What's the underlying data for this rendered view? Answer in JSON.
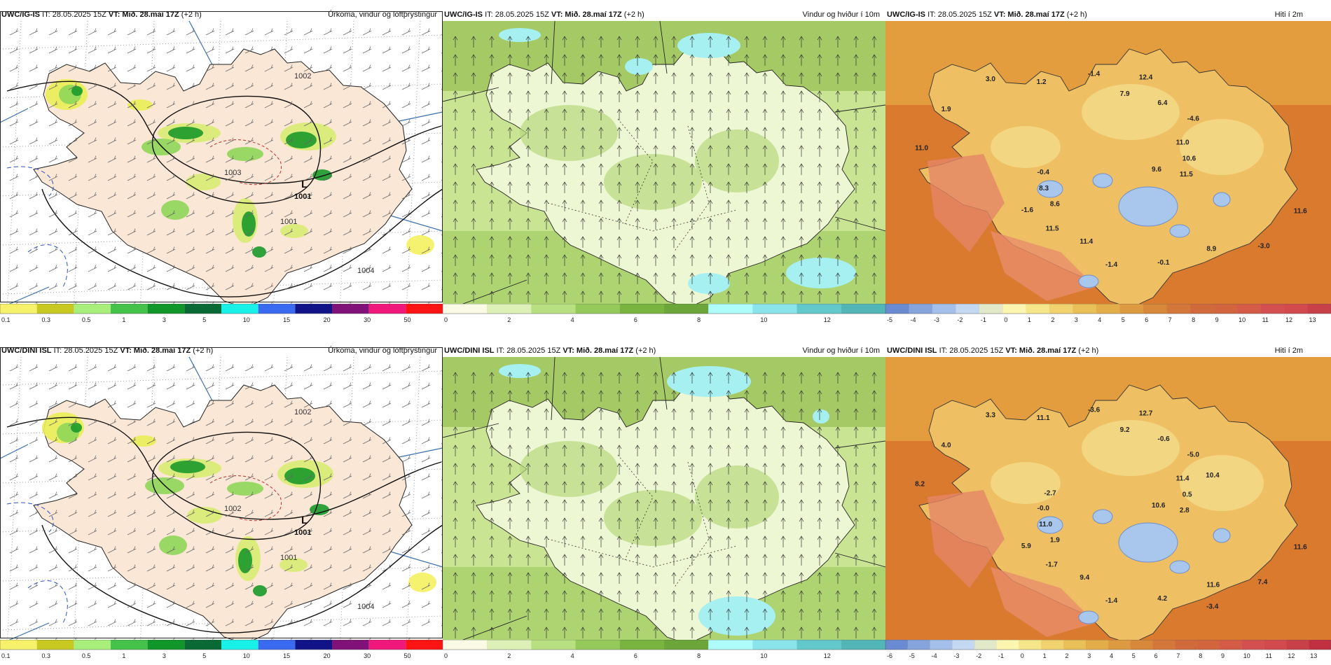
{
  "colors": {
    "land_precip": "#fbe7d6",
    "sea_precip": "#ffffff",
    "wind_base": "#d9eeb0",
    "temp_sea": "#d97a2f"
  },
  "rows": [
    {
      "panels": [
        {
          "model": "UWC/IG-IS",
          "it": "IT: 28.05.2025 15Z",
          "vt": "VT: Mið. 28.maí 17Z",
          "lead": "(+2 h)",
          "product": "Úrkoma, vindur og loftþrýstingur",
          "pressure_labels": [
            "1002",
            "1003",
            "1001",
            "1004"
          ],
          "low_symbol": "L",
          "colorbar": [
            "0.1",
            "0.3",
            "0.5",
            "1",
            "3",
            "5",
            "10",
            "15",
            "20",
            "30",
            "50"
          ]
        },
        {
          "model": "UWC/IG-IS",
          "it": "IT: 28.05.2025 15Z",
          "vt": "VT: Mið. 28.maí 17Z",
          "lead": "(+2 h)",
          "product": "Vindur og hviður í 10m",
          "colorbar": [
            "0",
            "2",
            "4",
            "6",
            "8",
            "10",
            "12"
          ]
        },
        {
          "model": "UWC/IG-IS",
          "it": "IT: 28.05.2025 15Z",
          "vt": "VT: Mið. 28.maí 17Z",
          "lead": "(+2 h)",
          "product": "Hiti í 2m",
          "temps": [
            "9.6",
            "8.6",
            "7.9",
            "8.9",
            "11.0",
            "11.0",
            "11.4",
            "1.2",
            "11.6",
            "8.3",
            "6.4",
            "-0.1",
            "1.9",
            "10.6",
            "11.5",
            "-1.4",
            "-3.0",
            "-0.4",
            "-4.6",
            "-1.4",
            "3.0",
            "11.5",
            "-1.6",
            "12.4"
          ],
          "colorbar": [
            "-5",
            "-4",
            "-3",
            "-2",
            "-1",
            "0",
            "1",
            "2",
            "3",
            "4",
            "5",
            "6",
            "7",
            "8",
            "9",
            "10",
            "11",
            "12",
            "13"
          ]
        }
      ]
    },
    {
      "panels": [
        {
          "model": "UWC/DINI ISL",
          "it": "IT: 28.05.2025 15Z",
          "vt": "VT: Mið. 28.maí 17Z",
          "lead": "(+2 h)",
          "product": "Úrkoma, vindur og loftþrýstingur",
          "pressure_labels": [
            "1002",
            "1002",
            "1001",
            "1004"
          ],
          "low_symbol": "L",
          "colorbar": [
            "0.1",
            "0.3",
            "0.5",
            "1",
            "3",
            "5",
            "10",
            "15",
            "20",
            "30",
            "50"
          ]
        },
        {
          "model": "UWC/DINI ISL",
          "it": "IT: 28.05.2025 15Z",
          "vt": "VT: Mið. 28.maí 17Z",
          "lead": "(+2 h)",
          "product": "Vindur og hviður í 10m",
          "colorbar": [
            "0",
            "2",
            "4",
            "6",
            "8",
            "10",
            "12"
          ]
        },
        {
          "model": "UWC/DINI ISL",
          "it": "IT: 28.05.2025 15Z",
          "vt": "VT: Mið. 28.maí 17Z",
          "lead": "(+2 h)",
          "product": "Hiti í 2m",
          "temps": [
            "10.6",
            "1.9",
            "9.2",
            "11.6",
            "8.2",
            "11.4",
            "9.4",
            "11.1",
            "11.6",
            "11.0",
            "-0.6",
            "4.2",
            "4.0",
            "0.5",
            "-1.7",
            "-3.6",
            "7.4",
            "-0.0",
            "-5.0",
            "-1.4",
            "3.3",
            "2.8",
            "5.9",
            "12.7",
            "-3.4",
            "-2.7",
            "10.4"
          ],
          "colorbar": [
            "-6",
            "-5",
            "-4",
            "-3",
            "-2",
            "-1",
            "0",
            "1",
            "2",
            "3",
            "4",
            "5",
            "6",
            "7",
            "8",
            "9",
            "10",
            "11",
            "12",
            "13"
          ]
        }
      ]
    }
  ]
}
